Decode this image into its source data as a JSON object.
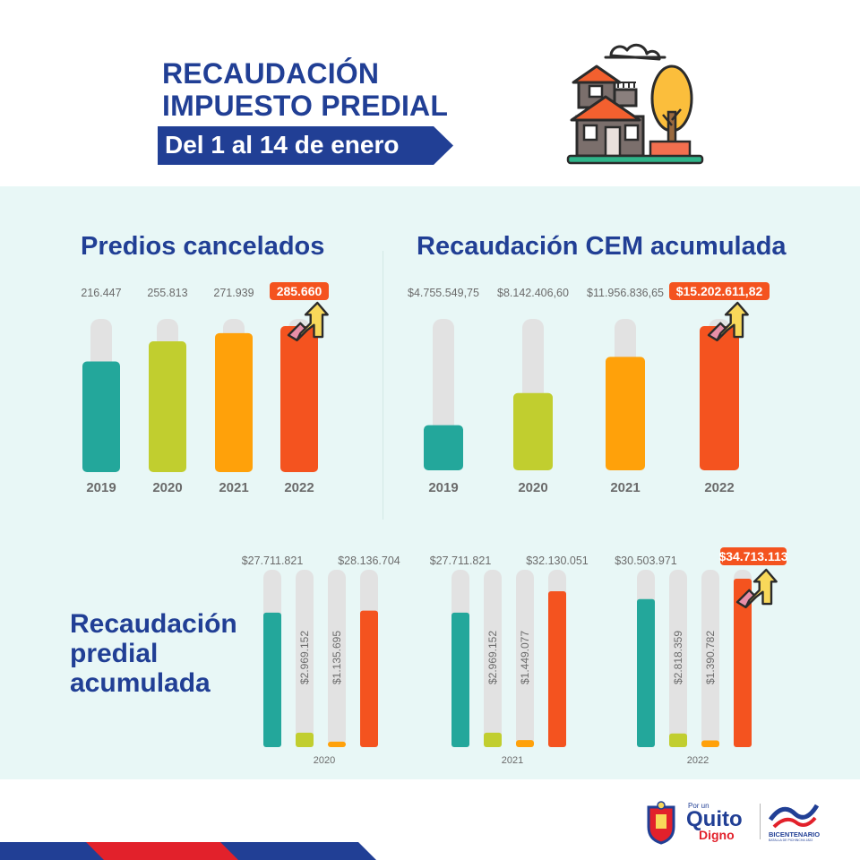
{
  "header": {
    "title_line1": "RECAUDACIÓN",
    "title_line2": "IMPUESTO PREDIAL",
    "subtitle": "Del 1 al 14 de enero"
  },
  "colors": {
    "title": "#213f95",
    "panel_bg": "#e8f7f6",
    "track": "#e2e2e2",
    "bar_2019": "#23a79b",
    "bar_2020": "#c1ce2f",
    "bar_2021": "#ffa10a",
    "bar_2022": "#f4531f",
    "highlight_label_bg": "#f4531f",
    "arrow": "#f8d85a",
    "arrow_base": "#e78fa8"
  },
  "chart_data": [
    {
      "type": "bar",
      "title": "Predios cancelados",
      "categories": [
        "2019",
        "2020",
        "2021",
        "2022"
      ],
      "values": [
        216447,
        255813,
        271939,
        285660
      ],
      "value_labels": [
        "216.447",
        "255.813",
        "271.939",
        "285.660"
      ],
      "ylim": [
        0,
        285660
      ],
      "highlight_index": 3
    },
    {
      "type": "bar",
      "title": "Recaudación CEM acumulada",
      "categories": [
        "2019",
        "2020",
        "2021",
        "2022"
      ],
      "values": [
        4755549.75,
        8142406.6,
        11956836.65,
        15202611.82
      ],
      "value_labels": [
        "$4.755.549,75",
        "$8.142.406,60",
        "$11.956.836,65",
        "$15.202.611,82"
      ],
      "ylim": [
        0,
        15202611.82
      ],
      "highlight_index": 3
    },
    {
      "type": "bar",
      "title": "Recaudación predial acumulada",
      "ylim": [
        0,
        34713113
      ],
      "groups": [
        {
          "category": "2020",
          "values": [
            27711821,
            2969152,
            1135695,
            28136704
          ],
          "value_labels": [
            "$27.711.821",
            "$2.969.152",
            "$1.135.695",
            "$28.136.704"
          ],
          "highlight_index": -1
        },
        {
          "category": "2021",
          "values": [
            27711821,
            2969152,
            1449077,
            32130051
          ],
          "value_labels": [
            "$27.711.821",
            "$2.969.152",
            "$1.449.077",
            "$32.130.051"
          ],
          "highlight_index": -1
        },
        {
          "category": "2022",
          "values": [
            30503971,
            2818359,
            1390782,
            34713113
          ],
          "value_labels": [
            "$30.503.971",
            "$2.818.359",
            "$1.390.782",
            "$34.713.113"
          ],
          "highlight_index": 3
        }
      ]
    }
  ],
  "footer": {
    "logo_quito_small": "Por un",
    "logo_quito_main": "Quito",
    "logo_quito_sub": "Digno",
    "logo_bicentenario": "BICENTENARIO",
    "logo_bicentenario_sub": "BATALLA DE PICHINCHA 1822"
  }
}
